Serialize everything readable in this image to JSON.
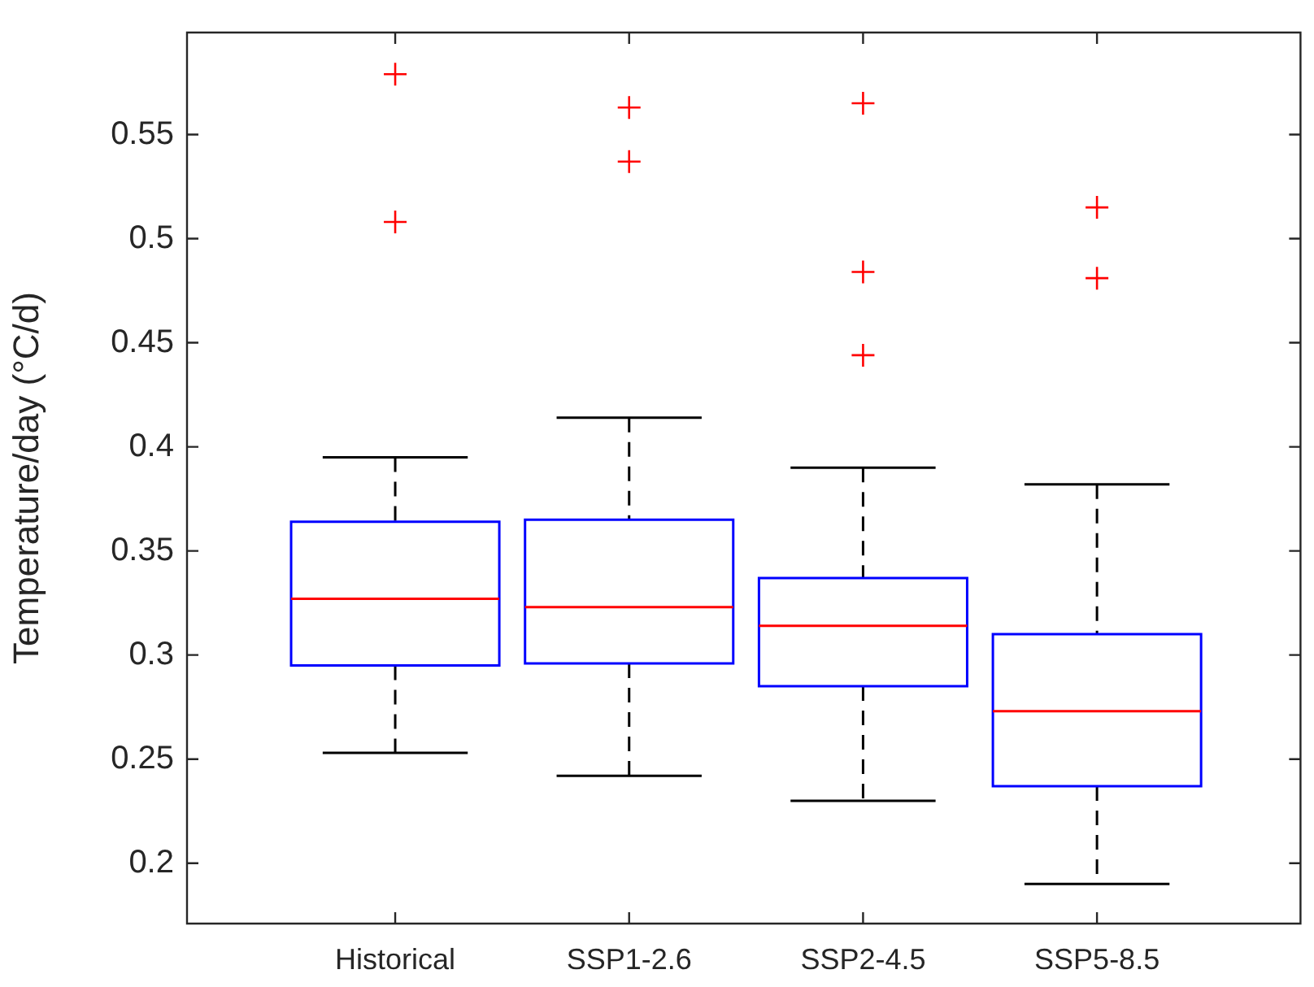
{
  "chart_data": {
    "type": "box",
    "ylabel": "Temperature/day (°C/d)",
    "categories": [
      "Historical",
      "SSP1-2.6",
      "SSP2-4.5",
      "SSP5-8.5"
    ],
    "series": [
      {
        "color": "#0000ff",
        "boxes": [
          {
            "low": 0.253,
            "q1": 0.295,
            "median": 0.327,
            "q3": 0.364,
            "high": 0.395,
            "outliers": [
              0.508,
              0.579
            ]
          },
          {
            "low": 0.242,
            "q1": 0.296,
            "median": 0.323,
            "q3": 0.365,
            "high": 0.414,
            "outliers": [
              0.537,
              0.563
            ]
          },
          {
            "low": 0.23,
            "q1": 0.285,
            "median": 0.314,
            "q3": 0.337,
            "high": 0.39,
            "outliers": [
              0.444,
              0.484,
              0.565
            ]
          },
          {
            "low": 0.19,
            "q1": 0.237,
            "median": 0.273,
            "q3": 0.31,
            "high": 0.382,
            "outliers": [
              0.481,
              0.515
            ]
          }
        ]
      }
    ],
    "ylim": [
      0.171,
      0.599
    ],
    "yticks": [
      0.2,
      0.25,
      0.3,
      0.35,
      0.4,
      0.45,
      0.5,
      0.55
    ]
  }
}
